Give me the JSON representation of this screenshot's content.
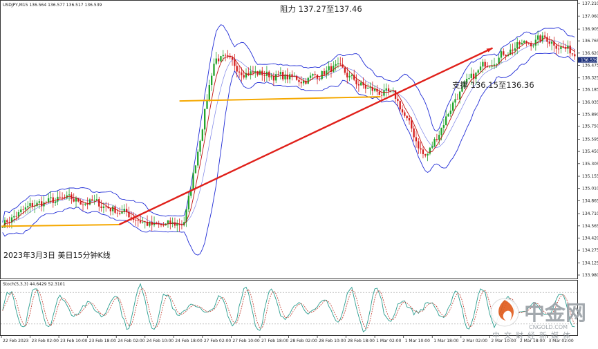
{
  "header": {
    "symbol_label": "USDJPY,M15  136.564 136.577 136.517 136.539"
  },
  "annotations": {
    "resistance": "阻力 137.27至137.46",
    "support": "支撑 136.15至136.36",
    "caption": "2023年3月3日  美日15分钟K线"
  },
  "oscillator": {
    "label": "Stoch(5,3,3) 44.6429 52.3101",
    "levels": [
      "80",
      "20"
    ]
  },
  "watermark": {
    "brand": "中金网",
    "domain": "CNGOLD.COM",
    "cn": "中文财经新媒体"
  },
  "colors": {
    "up": "#22a32c",
    "down": "#d41d1d",
    "band": "#1f2bd6",
    "ma": "#c01010",
    "support_line": "#f5a800",
    "trend_line": "#e0201a",
    "price_box": "#1b2f7a"
  },
  "price_axis": {
    "ticks": [
      "137.210",
      "137.060",
      "136.905",
      "136.765",
      "136.620",
      "136.475",
      "136.325",
      "136.185",
      "136.035",
      "135.890",
      "135.750",
      "135.595",
      "135.450",
      "135.305",
      "135.155",
      "135.010",
      "134.865",
      "134.710",
      "134.565",
      "134.420",
      "134.275",
      "134.125",
      "133.980"
    ],
    "current": "136.539"
  },
  "time_axis": [
    "22 Feb 2023",
    "23 Feb 02:00",
    "23 Feb 10:00",
    "23 Feb 18:00",
    "24 Feb 02:00",
    "24 Feb 10:00",
    "24 Feb 18:00",
    "27 Feb 02:00",
    "27 Feb 10:00",
    "27 Feb 18:00",
    "28 Feb 02:00",
    "28 Feb 10:00",
    "28 Feb 18:00",
    "1 Mar 02:00",
    "1 Mar 10:00",
    "1 Mar 18:00",
    "2 Mar 02:00",
    "2 Mar 10:00",
    "2 Mar 18:00",
    "3 Mar 02:00"
  ],
  "chart_data": {
    "type": "line",
    "title": "USDJPY,M15",
    "ylim": [
      133.98,
      137.21
    ],
    "x": [
      "22 Feb 2023",
      "23 Feb 02:00",
      "23 Feb 10:00",
      "23 Feb 18:00",
      "24 Feb 02:00",
      "24 Feb 10:00",
      "24 Feb 18:00",
      "27 Feb 02:00",
      "27 Feb 10:00",
      "27 Feb 18:00",
      "28 Feb 02:00",
      "28 Feb 10:00",
      "28 Feb 18:00",
      "1 Mar 02:00",
      "1 Mar 10:00",
      "1 Mar 18:00",
      "2 Mar 02:00",
      "2 Mar 10:00",
      "2 Mar 18:00",
      "3 Mar 02:00"
    ],
    "series": [
      {
        "name": "USDJPY,M15",
        "values": [
          134.6,
          134.82,
          134.88,
          134.84,
          134.72,
          134.55,
          134.6,
          136.6,
          136.4,
          136.35,
          136.3,
          136.45,
          136.2,
          136.1,
          135.35,
          136.1,
          136.5,
          136.7,
          136.8,
          136.6
        ]
      }
    ],
    "annotations": [
      "阻力 137.27至137.46",
      "支撑 136.15至136.36"
    ]
  }
}
